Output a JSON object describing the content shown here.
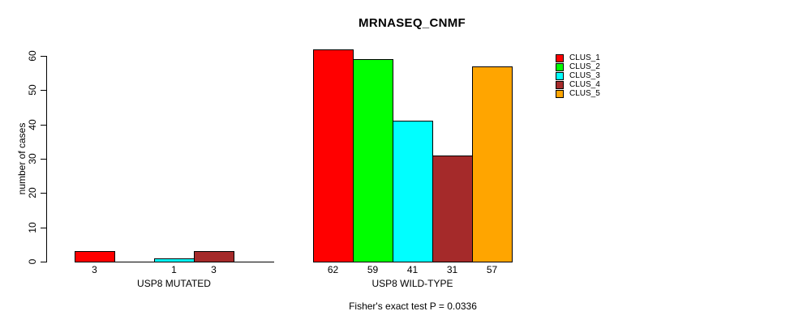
{
  "colors": {
    "axis": "#000000",
    "text": "#000000",
    "background": "#ffffff"
  },
  "chart_data": {
    "type": "bar",
    "title": "MRNASEQ_CNMF",
    "ylabel": "number of cases",
    "xlabel": "",
    "ylim": [
      0,
      60
    ],
    "yticks": [
      0,
      10,
      20,
      30,
      40,
      50,
      60
    ],
    "grid": false,
    "legend_position": "right",
    "categories": [
      "USP8 MUTATED",
      "USP8 WILD-TYPE"
    ],
    "series": [
      {
        "name": "CLUS_1",
        "color": "#ff0000",
        "values": [
          3,
          62
        ]
      },
      {
        "name": "CLUS_2",
        "color": "#00ff00",
        "values": [
          0,
          59
        ]
      },
      {
        "name": "CLUS_3",
        "color": "#00ffff",
        "values": [
          1,
          41
        ]
      },
      {
        "name": "CLUS_4",
        "color": "#a52a2a",
        "values": [
          3,
          31
        ]
      },
      {
        "name": "CLUS_5",
        "color": "#ffa500",
        "values": [
          0,
          57
        ]
      }
    ],
    "bar_value_labels": {
      "shown_for_nonzero_only": true,
      "usp8_mutated": [
        3,
        1,
        3
      ],
      "usp8_wild_type": [
        62,
        59,
        41,
        31,
        57
      ]
    },
    "annotation": "Fisher's exact test P = 0.0336"
  }
}
